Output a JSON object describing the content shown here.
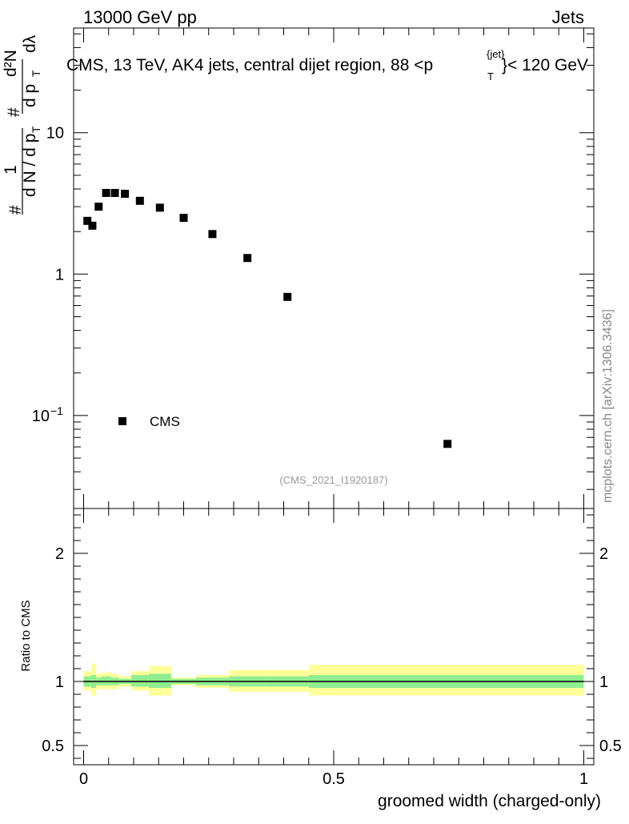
{
  "header": {
    "left": "13000 GeV pp",
    "right": "Jets"
  },
  "watermark": "mcplots.cern.ch [arXiv:1306.3436]",
  "analysis_id": "(CMS_2021_I1920187)",
  "colors": {
    "data_marker": "#000000",
    "band_inner": "#90ee90",
    "band_outer": "#ffff99",
    "analysis_id": "#999999",
    "watermark": "#888888"
  },
  "chart_data": [
    {
      "type": "scatter",
      "panel": "main",
      "title": "CMS, 13 TeV, AK4 jets, central dijet region, 88 <p_T^{jet}< 120 GeV",
      "title_parts": {
        "main": "CMS, 13 TeV, AK4 jets, central dijet region, 88 <p",
        "sup": "{jet}",
        "sub": "T",
        "tail": "}< 120 GeV"
      },
      "ylabel": "#1/dN/dp_T # d²N/dp_T dλ",
      "ylabel_parts": {
        "hash": "#",
        "one": "1",
        "den": "d N / d p",
        "den_sub": "T",
        "num": "d²N",
        "num_den": "d p",
        "num_den_sub": "T",
        "lambda": "dλ"
      },
      "yscale": "log",
      "ylim": [
        0.022,
        55
      ],
      "xlim": [
        -0.02,
        1.02
      ],
      "y_ticks": [
        {
          "value": 0.1,
          "label": "10",
          "exp": "−1"
        },
        {
          "value": 1,
          "label": "1",
          "exp": ""
        },
        {
          "value": 10,
          "label": "10",
          "exp": ""
        }
      ],
      "legend": {
        "entries": [
          "CMS"
        ],
        "placement": "lower-left"
      },
      "series": [
        {
          "name": "CMS",
          "marker": "square",
          "points": [
            {
              "x": 0.0075,
              "y": 2.38
            },
            {
              "x": 0.0175,
              "y": 2.2
            },
            {
              "x": 0.03,
              "y": 3.0
            },
            {
              "x": 0.045,
              "y": 3.75
            },
            {
              "x": 0.0625,
              "y": 3.75
            },
            {
              "x": 0.0825,
              "y": 3.7
            },
            {
              "x": 0.1125,
              "y": 3.3
            },
            {
              "x": 0.1525,
              "y": 2.95
            },
            {
              "x": 0.2,
              "y": 2.5
            },
            {
              "x": 0.2575,
              "y": 1.92
            },
            {
              "x": 0.3275,
              "y": 1.3
            },
            {
              "x": 0.4075,
              "y": 0.69
            },
            {
              "x": 0.7275,
              "y": 0.063
            }
          ]
        }
      ]
    },
    {
      "type": "area",
      "panel": "ratio",
      "xlabel": "groomed width (charged-only)",
      "ylabel": "Ratio to CMS",
      "ylim": [
        0.35,
        2.35
      ],
      "xlim": [
        -0.02,
        1.02
      ],
      "y_ticks": [
        0.5,
        1,
        2
      ],
      "y_tick_labels": [
        "0.5",
        "1",
        "2"
      ],
      "x_ticks": [
        0,
        0.5,
        1
      ],
      "x_tick_labels": [
        "0",
        "0.5",
        "1"
      ],
      "reference_line": 1,
      "bins": [
        {
          "lo": 0.0,
          "hi": 0.015,
          "inner": [
            0.96,
            1.04
          ],
          "outer": [
            0.93,
            1.08
          ]
        },
        {
          "lo": 0.015,
          "hi": 0.025,
          "inner": [
            0.95,
            1.05
          ],
          "outer": [
            0.89,
            1.14
          ]
        },
        {
          "lo": 0.025,
          "hi": 0.035,
          "inner": [
            0.97,
            1.03
          ],
          "outer": [
            0.94,
            1.06
          ]
        },
        {
          "lo": 0.035,
          "hi": 0.055,
          "inner": [
            0.97,
            1.04
          ],
          "outer": [
            0.94,
            1.07
          ]
        },
        {
          "lo": 0.055,
          "hi": 0.07,
          "inner": [
            0.97,
            1.03
          ],
          "outer": [
            0.94,
            1.06
          ]
        },
        {
          "lo": 0.07,
          "hi": 0.095,
          "inner": [
            0.98,
            1.02
          ],
          "outer": [
            0.96,
            1.04
          ]
        },
        {
          "lo": 0.095,
          "hi": 0.13,
          "inner": [
            0.96,
            1.05
          ],
          "outer": [
            0.93,
            1.08
          ]
        },
        {
          "lo": 0.13,
          "hi": 0.175,
          "inner": [
            0.95,
            1.06
          ],
          "outer": [
            0.89,
            1.12
          ]
        },
        {
          "lo": 0.175,
          "hi": 0.225,
          "inner": [
            0.98,
            1.02
          ],
          "outer": [
            0.97,
            1.03
          ]
        },
        {
          "lo": 0.225,
          "hi": 0.29,
          "inner": [
            0.97,
            1.03
          ],
          "outer": [
            0.95,
            1.05
          ]
        },
        {
          "lo": 0.29,
          "hi": 0.365,
          "inner": [
            0.96,
            1.04
          ],
          "outer": [
            0.92,
            1.09
          ]
        },
        {
          "lo": 0.365,
          "hi": 0.45,
          "inner": [
            0.96,
            1.04
          ],
          "outer": [
            0.92,
            1.09
          ]
        },
        {
          "lo": 0.45,
          "hi": 1.0,
          "inner": [
            0.95,
            1.05
          ],
          "outer": [
            0.89,
            1.13
          ]
        }
      ]
    }
  ]
}
